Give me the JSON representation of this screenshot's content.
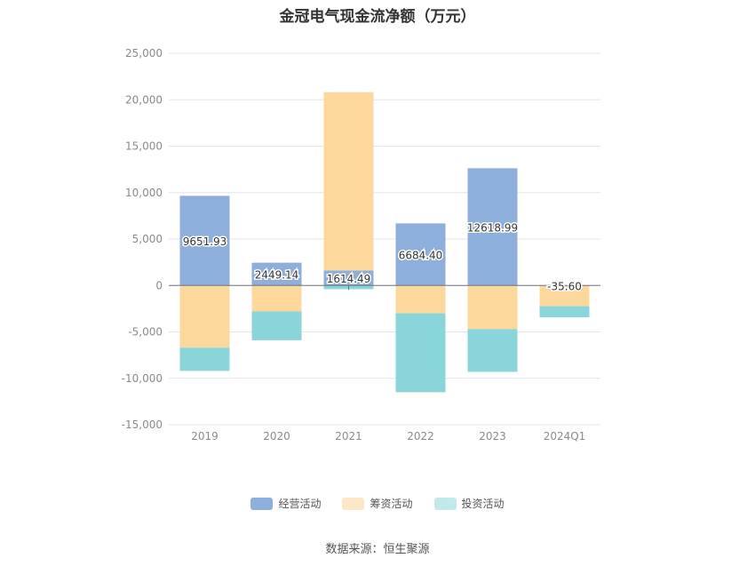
{
  "title": "金冠电气现金流净额（万元）",
  "source": "数据来源：恒生聚源",
  "colors": {
    "operating": "#8eaedb",
    "financing": "#fdd89c",
    "investing": "#89d5da"
  },
  "legend": [
    {
      "key": "operating",
      "label": "经营活动",
      "swatch": "#8eaedb"
    },
    {
      "key": "financing",
      "label": "筹资活动",
      "swatch": "#fde7c4"
    },
    {
      "key": "investing",
      "label": "投资活动",
      "swatch": "#c1e9ec"
    }
  ],
  "chart_data": {
    "type": "bar",
    "stacked": true,
    "categories": [
      "2019",
      "2020",
      "2021",
      "2022",
      "2023",
      "2024Q1"
    ],
    "series": [
      {
        "name": "经营活动",
        "key": "operating",
        "values": [
          9651.93,
          2449.14,
          1614.49,
          6684.4,
          12618.99,
          -35.6
        ]
      },
      {
        "name": "筹资活动",
        "key": "financing",
        "values": [
          -6700,
          -2800,
          19200,
          -3000,
          -4700,
          -2200
        ]
      },
      {
        "name": "投资活动",
        "key": "investing",
        "values": [
          -2500,
          -3100,
          -400,
          -8500,
          -4600,
          -1200
        ]
      }
    ],
    "data_labels": [
      "9651.93",
      "2449.14",
      "1614.49",
      "6684.40",
      "12618.99",
      "-35.60"
    ],
    "yticks": [
      "25,000",
      "20,000",
      "15,000",
      "10,000",
      "5,000",
      "0",
      "-5,000",
      "-10,000",
      "-15,000"
    ],
    "ytick_values": [
      25000,
      20000,
      15000,
      10000,
      5000,
      0,
      -5000,
      -10000,
      -15000
    ],
    "ylim": [
      -15000,
      25000
    ],
    "grid": true,
    "legend_position": "bottom"
  }
}
